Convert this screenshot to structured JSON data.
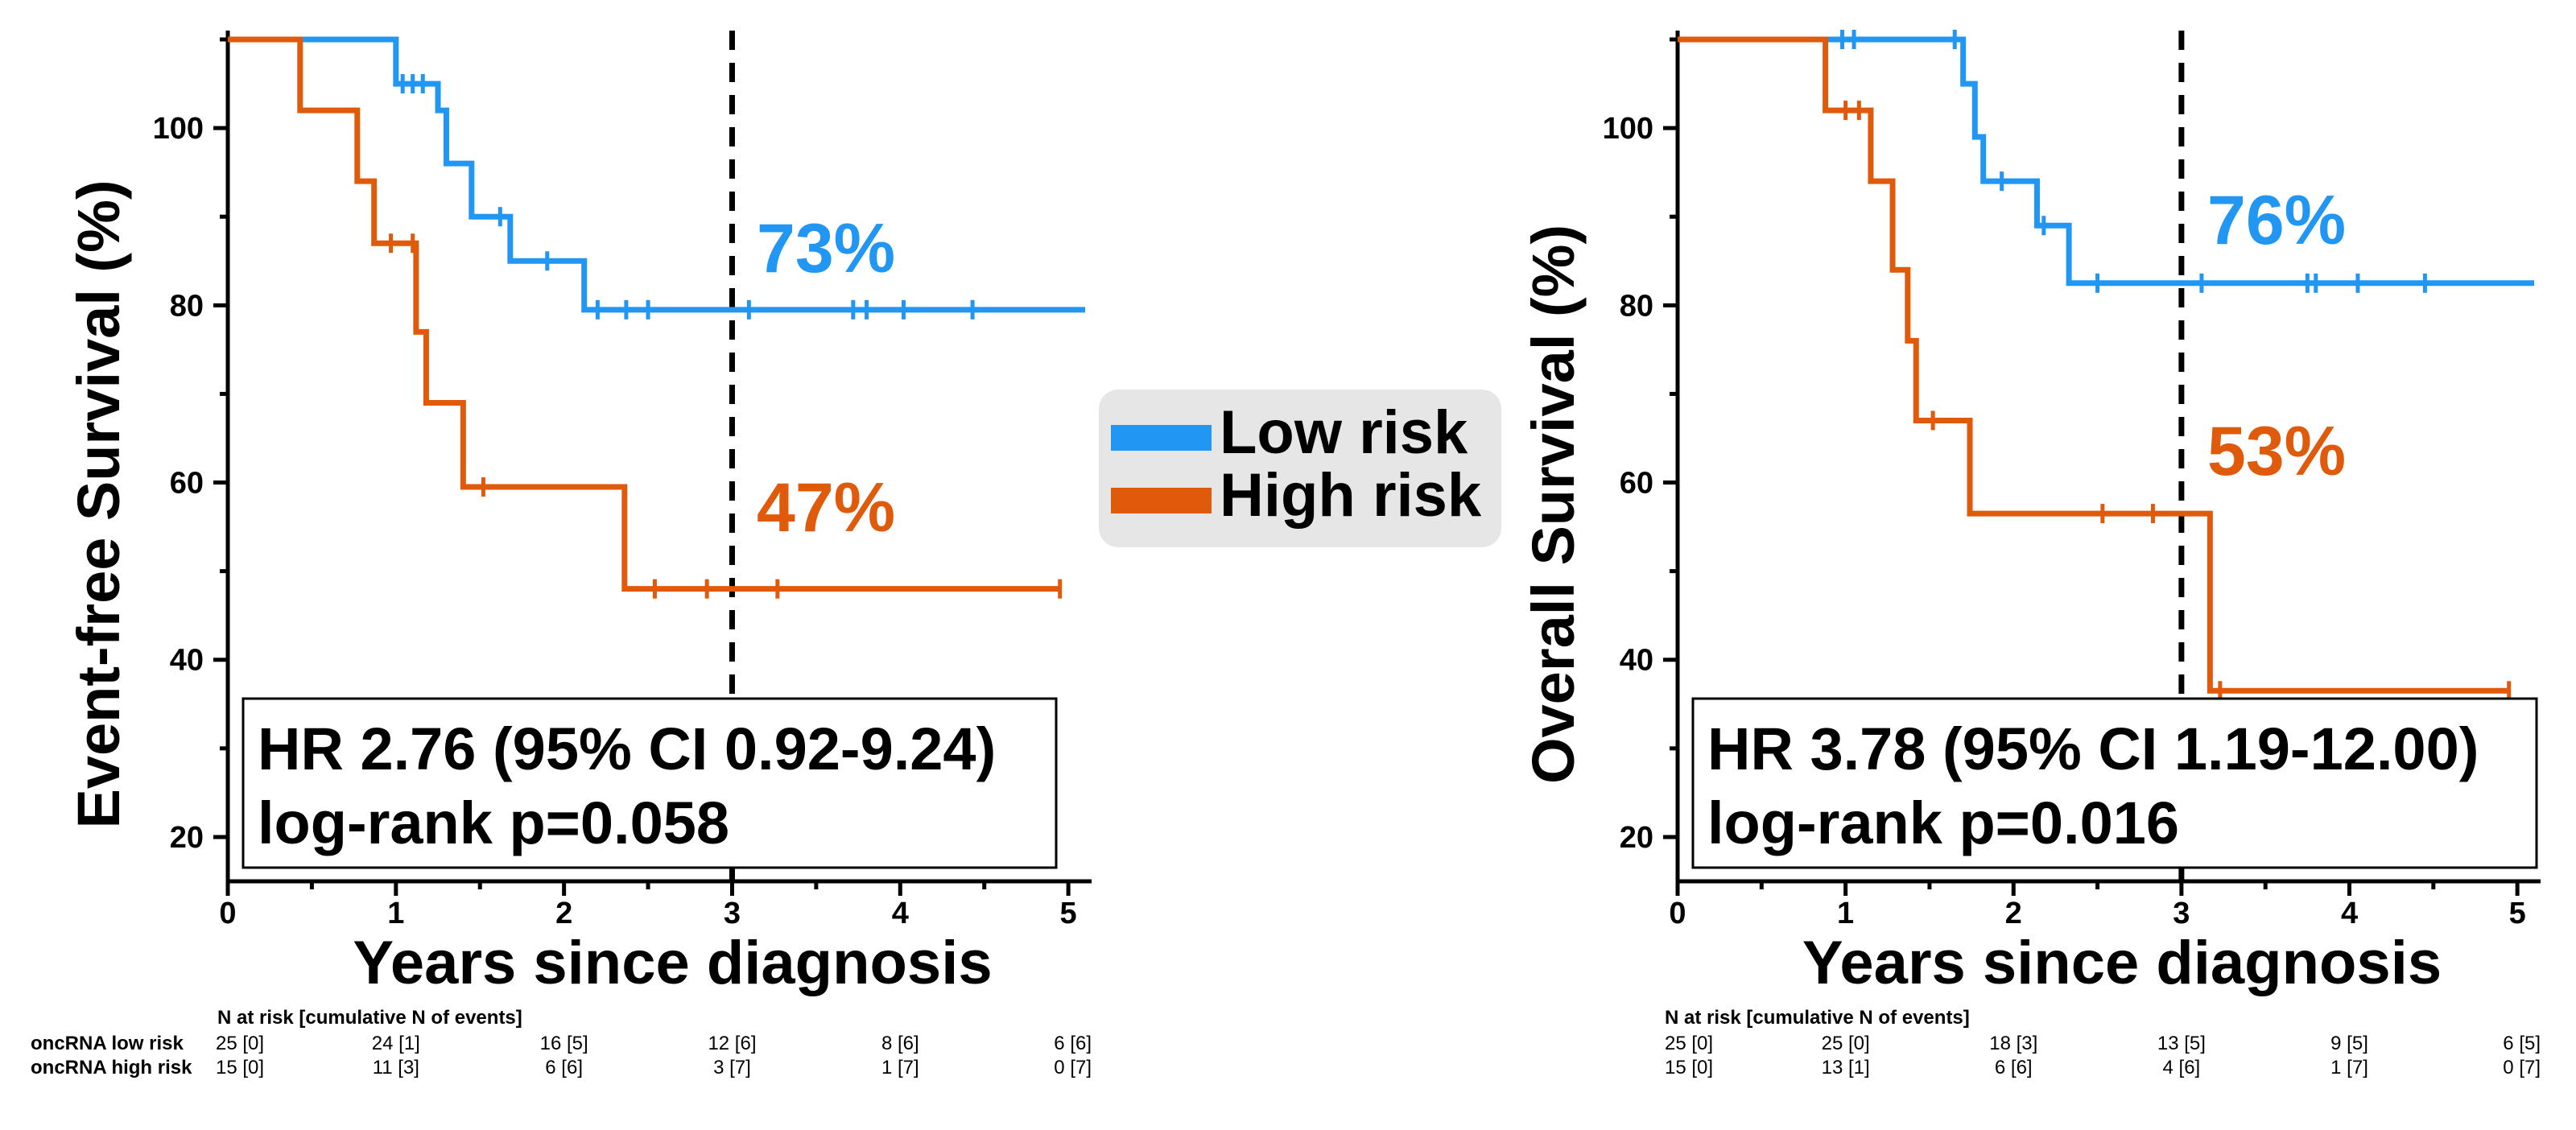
{
  "colors": {
    "low": "#2196f3",
    "high": "#e05a0c",
    "legend_bg": "#e6e6e6"
  },
  "legend": {
    "items": [
      {
        "label": "Low risk",
        "color": "#2196f3"
      },
      {
        "label": "High risk",
        "color": "#e05a0c"
      }
    ]
  },
  "chart_data": [
    {
      "type": "line",
      "subtype": "kaplan-meier",
      "ylabel": "Event-free Survival (%)",
      "xlabel": "Years since diagnosis",
      "xlim": [
        0,
        5.1
      ],
      "ylim": [
        15,
        111
      ],
      "xticks": [
        0,
        1,
        2,
        3,
        4,
        5
      ],
      "yticks": [
        20,
        40,
        60,
        80,
        100
      ],
      "yticks_labeled": [
        20,
        40,
        60,
        80,
        100
      ],
      "reference_x": 3,
      "series": [
        {
          "name": "Low risk",
          "steps": [
            [
              0,
              110
            ],
            [
              1.0,
              105
            ],
            [
              1.25,
              102
            ],
            [
              1.3,
              96
            ],
            [
              1.45,
              90
            ],
            [
              1.68,
              85
            ],
            [
              2.12,
              79.5
            ],
            [
              5.1,
              79.5
            ]
          ],
          "censors": [
            [
              1.04,
              105
            ],
            [
              1.1,
              105
            ],
            [
              1.16,
              105
            ],
            [
              1.62,
              90
            ],
            [
              1.9,
              85
            ],
            [
              2.2,
              79.5
            ],
            [
              2.37,
              79.5
            ],
            [
              2.5,
              79.5
            ],
            [
              3.1,
              79.5
            ],
            [
              3.72,
              79.5
            ],
            [
              3.8,
              79.5
            ],
            [
              4.02,
              79.5
            ],
            [
              4.43,
              79.5
            ]
          ],
          "label_value": "73%"
        },
        {
          "name": "High risk",
          "steps": [
            [
              0,
              110
            ],
            [
              0.43,
              102
            ],
            [
              0.77,
              94
            ],
            [
              0.87,
              87
            ],
            [
              1.12,
              77
            ],
            [
              1.18,
              69
            ],
            [
              1.4,
              59.5
            ],
            [
              2.36,
              48
            ],
            [
              4.95,
              48
            ]
          ],
          "censors": [
            [
              0.97,
              87
            ],
            [
              1.1,
              87
            ],
            [
              1.52,
              59.5
            ],
            [
              2.54,
              48
            ],
            [
              2.85,
              48
            ],
            [
              3.27,
              48
            ],
            [
              4.95,
              48
            ]
          ],
          "label_value": "47%"
        }
      ],
      "stats": {
        "line1": "HR 2.76 (95% CI 0.92-9.24)",
        "line2": "log-rank p=0.058"
      },
      "risk_table": {
        "title": "N at risk [cumulative N of events]",
        "rows": [
          {
            "label": "oncRNA low risk",
            "values": [
              "25 [0]",
              "24 [1]",
              "16 [5]",
              "12 [6]",
              "8 [6]",
              "6 [6]"
            ]
          },
          {
            "label": "oncRNA high risk",
            "values": [
              "15 [0]",
              "11 [3]",
              "6 [6]",
              "3 [7]",
              "1 [7]",
              "0 [7]"
            ]
          }
        ]
      }
    },
    {
      "type": "line",
      "subtype": "kaplan-meier",
      "ylabel": "Overall Survival (%)",
      "xlabel": "Years since diagnosis",
      "xlim": [
        0,
        5.1
      ],
      "ylim": [
        15,
        111
      ],
      "xticks": [
        0,
        1,
        2,
        3,
        4,
        5
      ],
      "yticks": [
        20,
        40,
        60,
        80,
        100
      ],
      "yticks_labeled": [
        20,
        40,
        60,
        80,
        100
      ],
      "reference_x": 3,
      "series": [
        {
          "name": "Low risk",
          "steps": [
            [
              0,
              110
            ],
            [
              1.7,
              105
            ],
            [
              1.77,
              99
            ],
            [
              1.82,
              94
            ],
            [
              2.14,
              89
            ],
            [
              2.33,
              82.5
            ],
            [
              5.1,
              82.5
            ]
          ],
          "censors": [
            [
              0.98,
              110
            ],
            [
              1.05,
              110
            ],
            [
              1.65,
              110
            ],
            [
              1.93,
              94
            ],
            [
              2.18,
              89
            ],
            [
              2.5,
              82.5
            ],
            [
              3.12,
              82.5
            ],
            [
              3.75,
              82.5
            ],
            [
              3.8,
              82.5
            ],
            [
              4.05,
              82.5
            ],
            [
              4.45,
              82.5
            ]
          ],
          "label_value": "76%"
        },
        {
          "name": "High risk",
          "steps": [
            [
              0,
              110
            ],
            [
              0.88,
              102
            ],
            [
              1.15,
              94
            ],
            [
              1.28,
              84
            ],
            [
              1.37,
              76
            ],
            [
              1.42,
              67
            ],
            [
              1.74,
              56.5
            ],
            [
              3.17,
              36.5
            ],
            [
              4.95,
              36.5
            ]
          ],
          "censors": [
            [
              1.0,
              102
            ],
            [
              1.08,
              102
            ],
            [
              1.52,
              67
            ],
            [
              2.53,
              56.5
            ],
            [
              2.83,
              56.5
            ],
            [
              3.23,
              36.5
            ],
            [
              4.95,
              36.5
            ]
          ],
          "label_value": "53%"
        }
      ],
      "stats": {
        "line1": "HR 3.78 (95% CI 1.19-12.00)",
        "line2": "log-rank p=0.016"
      },
      "risk_table": {
        "title": "N at risk [cumulative N of events]",
        "rows": [
          {
            "label": "",
            "values": [
              "25 [0]",
              "25 [0]",
              "18 [3]",
              "13 [5]",
              "9 [5]",
              "6 [5]"
            ]
          },
          {
            "label": "",
            "values": [
              "15 [0]",
              "13 [1]",
              "6 [6]",
              "4 [6]",
              "1 [7]",
              "0 [7]"
            ]
          }
        ]
      }
    }
  ]
}
